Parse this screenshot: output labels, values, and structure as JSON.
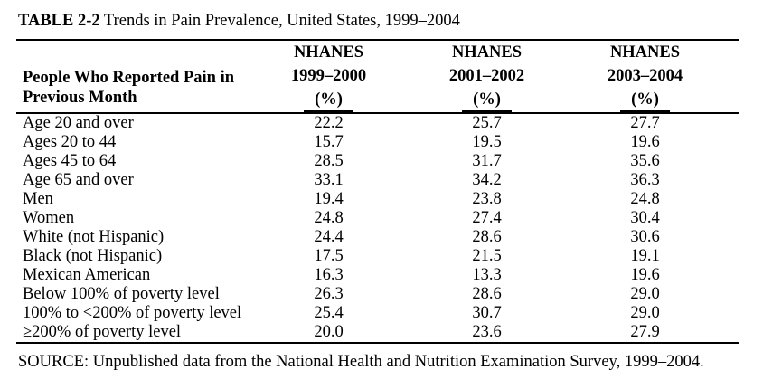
{
  "title": {
    "number": "TABLE 2-2",
    "caption": " Trends in Pain Prevalence, United States, 1999–2004"
  },
  "table": {
    "row_header": {
      "line1": "People Who Reported Pain in",
      "line2": "Previous Month"
    },
    "columns": [
      {
        "survey": "NHANES",
        "years": "1999–2000",
        "unit": "(%)"
      },
      {
        "survey": "NHANES",
        "years": "2001–2002",
        "unit": "(%)"
      },
      {
        "survey": "NHANES",
        "years": "2003–2004",
        "unit": "(%)"
      }
    ],
    "rows": [
      {
        "label": "Age 20 and over",
        "values": [
          "22.2",
          "25.7",
          "27.7"
        ]
      },
      {
        "label": "Ages 20 to 44",
        "values": [
          "15.7",
          "19.5",
          "19.6"
        ]
      },
      {
        "label": "Ages 45 to 64",
        "values": [
          "28.5",
          "31.7",
          "35.6"
        ]
      },
      {
        "label": "Age 65 and over",
        "values": [
          "33.1",
          "34.2",
          "36.3"
        ]
      },
      {
        "label": "Men",
        "values": [
          "19.4",
          "23.8",
          "24.8"
        ]
      },
      {
        "label": "Women",
        "values": [
          "24.8",
          "27.4",
          "30.4"
        ]
      },
      {
        "label": "White (not Hispanic)",
        "values": [
          "24.4",
          "28.6",
          "30.6"
        ]
      },
      {
        "label": "Black (not Hispanic)",
        "values": [
          "17.5",
          "21.5",
          "19.1"
        ]
      },
      {
        "label": "Mexican American",
        "values": [
          "16.3",
          "13.3",
          "19.6"
        ]
      },
      {
        "label": "Below 100% of poverty level",
        "values": [
          "26.3",
          "28.6",
          "29.0"
        ]
      },
      {
        "label": "100% to <200% of poverty level",
        "values": [
          "25.4",
          "30.7",
          "29.0"
        ]
      },
      {
        "label": "≥200% of poverty level",
        "values": [
          "20.0",
          "23.6",
          "27.9"
        ]
      }
    ]
  },
  "source": "SOURCE: Unpublished data from the National Health and Nutrition Examination Survey, 1999–2004.",
  "colors": {
    "text": "#000000",
    "background": "#ffffff",
    "rule": "#000000"
  }
}
